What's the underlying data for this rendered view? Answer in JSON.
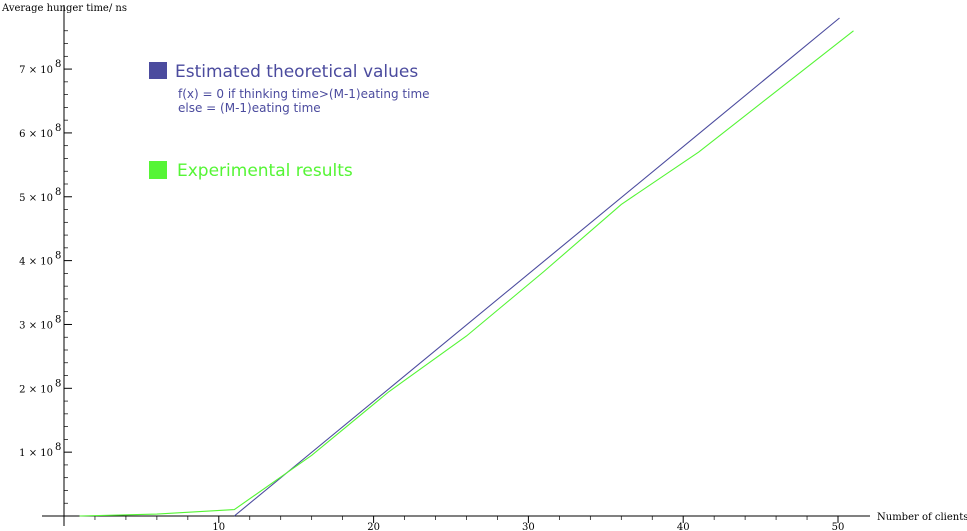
{
  "chart_data": {
    "type": "line",
    "xlabel": "Number of clients",
    "ylabel": "Average hunger time/ ns",
    "xlim": [
      0,
      52
    ],
    "ylim": [
      0,
      780000000
    ],
    "x_ticks": [
      10,
      20,
      30,
      40,
      50
    ],
    "y_ticks": [
      {
        "value": 100000000,
        "label": "1 × 10",
        "exp": "8"
      },
      {
        "value": 200000000,
        "label": "2 × 10",
        "exp": "8"
      },
      {
        "value": 300000000,
        "label": "3 × 10",
        "exp": "8"
      },
      {
        "value": 400000000,
        "label": "4 × 10",
        "exp": "8"
      },
      {
        "value": 500000000,
        "label": "5 × 10",
        "exp": "8"
      },
      {
        "value": 600000000,
        "label": "6 × 10",
        "exp": "8"
      },
      {
        "value": 700000000,
        "label": "7 × 10",
        "exp": "8"
      }
    ],
    "grid": false,
    "series": [
      {
        "name": "Estimated theoretical values",
        "color": "#4b4b9e",
        "x": [
          11,
          50.1
        ],
        "y": [
          0,
          780000000
        ]
      },
      {
        "name": "Experimental results",
        "color": "#55f535",
        "x": [
          1,
          6,
          11,
          16,
          21,
          26,
          31,
          36,
          41,
          46,
          51
        ],
        "y": [
          0,
          3000000,
          10000000,
          95000000,
          195000000,
          282000000,
          383000000,
          488000000,
          570000000,
          665000000,
          760000000
        ]
      }
    ],
    "legend": {
      "placement": "top-left",
      "theoretical": {
        "label": "Estimated theoretical values",
        "note_line1": "f(x)  = 0 if thinking time>(M-1)eating time",
        "note_line2": "else = (M-1)eating time"
      },
      "experimental": {
        "label": "Experimental results"
      }
    }
  }
}
